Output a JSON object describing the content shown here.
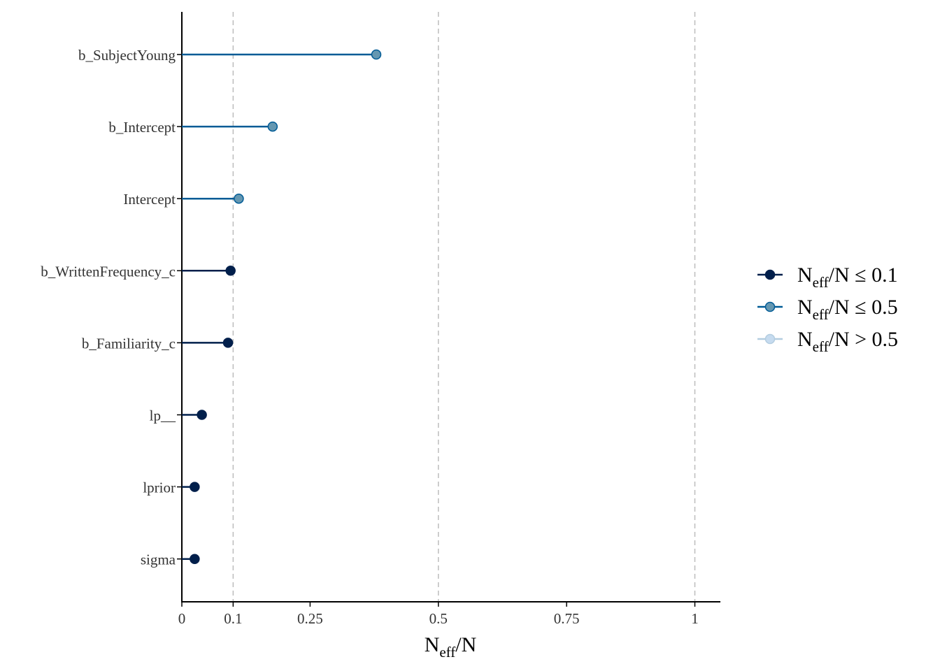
{
  "chart_data": {
    "type": "lollipop",
    "xlabel_main": "N",
    "xlabel_sub": "eff",
    "xlabel_tail": "/N",
    "xlim": [
      0,
      1.05
    ],
    "x_ticks": [
      {
        "value": 0,
        "label": "0"
      },
      {
        "value": 0.1,
        "label": "0.1"
      },
      {
        "value": 0.25,
        "label": "0.25"
      },
      {
        "value": 0.5,
        "label": "0.5"
      },
      {
        "value": 0.75,
        "label": "0.75"
      },
      {
        "value": 1,
        "label": "1"
      }
    ],
    "reference_lines": [
      0.1,
      0.5,
      1
    ],
    "categories": [
      "b_SubjectYoung",
      "b_Intercept",
      "Intercept",
      "b_WrittenFrequency_c",
      "b_Familiarity_c",
      "lp__",
      "lprior",
      "sigma"
    ],
    "values": [
      0.379,
      0.177,
      0.111,
      0.095,
      0.09,
      0.039,
      0.025,
      0.025
    ],
    "groups": [
      "mid",
      "mid",
      "mid",
      "low",
      "low",
      "low",
      "low",
      "low"
    ],
    "colors": {
      "low": {
        "fill": "#011f4b",
        "line": "#011f4b"
      },
      "mid": {
        "fill": "#6497b1",
        "line": "#005b96",
        "stroke": "#005b96"
      },
      "high": {
        "fill": "#c6dbef",
        "line": "#b3cde0",
        "stroke": "#b3cde0"
      }
    },
    "legend": {
      "position": "right",
      "items": [
        {
          "key": "low",
          "main": "N",
          "sub": "eff",
          "tail": "/N ≤ 0.1"
        },
        {
          "key": "mid",
          "main": "N",
          "sub": "eff",
          "tail": "/N ≤ 0.5"
        },
        {
          "key": "high",
          "main": "N",
          "sub": "eff",
          "tail": "/N > 0.5"
        }
      ]
    }
  }
}
